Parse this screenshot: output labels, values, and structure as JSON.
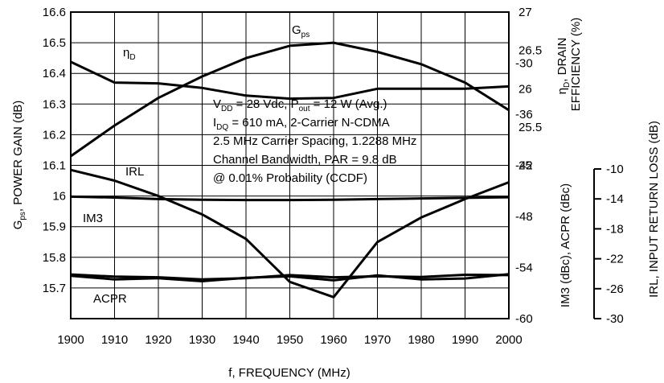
{
  "chart_data": {
    "type": "line",
    "x": [
      1900,
      1910,
      1920,
      1930,
      1940,
      1950,
      1960,
      1970,
      1980,
      1990,
      2000
    ],
    "xlabel": "f, FREQUENCY (MHz)",
    "xlim": [
      1900,
      2000
    ],
    "xticks": [
      "1900",
      "1910",
      "1920",
      "1930",
      "1940",
      "1950",
      "1960",
      "1970",
      "1980",
      "1990",
      "2000"
    ],
    "grid": true,
    "axes": {
      "gps": {
        "side": "left",
        "label_main": "G",
        "label_sub": "ps",
        "label_rest": ", POWER GAIN (dB)",
        "ylim": [
          15.6,
          16.6
        ],
        "ticks": [
          "16.6",
          "16.5",
          "16.4",
          "16.3",
          "16.2",
          "16.1",
          "16",
          "15.9",
          "15.8",
          "15.7"
        ]
      },
      "eff": {
        "side": "right-upper",
        "label_line1_main": "η",
        "label_line1_sub": "D",
        "label_line1_rest": ", DRAIN",
        "label_line2": "EFFICIENCY (%)",
        "ylim": [
          23,
          27
        ],
        "ticks": [
          "27",
          "26.5",
          "26",
          "25.5",
          "25"
        ]
      },
      "imd": {
        "side": "right-lower",
        "label": "IM3 (dBc), ACPR (dBc)",
        "ylim": [
          -60,
          -24
        ],
        "ticks": [
          "-30",
          "-36",
          "-42",
          "-48",
          "-54",
          "-60"
        ]
      },
      "irl": {
        "side": "right-outer",
        "label": "IRL, INPUT RETURN LOSS (dB)",
        "ylim": [
          -30,
          -10
        ],
        "ticks": [
          "-10",
          "-14",
          "-18",
          "-22",
          "-26",
          "-30"
        ]
      }
    },
    "series": [
      {
        "key": "gps",
        "name_main": "G",
        "name_sub": "ps",
        "axis": "gps",
        "values": [
          16.13,
          16.23,
          16.32,
          16.39,
          16.45,
          16.49,
          16.5,
          16.47,
          16.43,
          16.37,
          16.28
        ]
      },
      {
        "key": "eff",
        "name_main": "η",
        "name_sub": "D",
        "axis": "eff",
        "values": [
          26.35,
          26.08,
          26.07,
          26.01,
          25.91,
          25.87,
          25.88,
          26.0,
          26.0,
          26.0,
          26.03
        ]
      },
      {
        "key": "irl",
        "name": "IRL",
        "axis": "gps",
        "values": [
          16.085,
          16.05,
          16.0,
          15.94,
          15.86,
          15.72,
          15.67,
          15.85,
          15.93,
          15.99,
          16.045
        ]
      },
      {
        "key": "im3",
        "name": "IM3",
        "axis": "gps",
        "values": [
          15.998,
          15.995,
          15.99,
          15.988,
          15.987,
          15.987,
          15.988,
          15.99,
          15.992,
          15.994,
          15.996
        ]
      },
      {
        "key": "acpr_a",
        "name": "ACPR",
        "axis": "gps",
        "values": [
          15.744,
          15.737,
          15.735,
          15.728,
          15.732,
          15.742,
          15.735,
          15.738,
          15.736,
          15.743,
          15.742
        ]
      },
      {
        "key": "acpr_b",
        "name": "",
        "axis": "gps",
        "values": [
          15.74,
          15.728,
          15.732,
          15.722,
          15.733,
          15.738,
          15.725,
          15.741,
          15.728,
          15.731,
          15.745
        ]
      }
    ],
    "annotation": {
      "l1a": "V",
      "l1s": "DD",
      "l1b": " = 28 Vdc, P",
      "l1s2": "out",
      "l1c": " = 12 W (Avg.)",
      "l2a": "I",
      "l2s": "DQ",
      "l2b": " = 610 mA, 2-Carrier N-CDMA",
      "l3": "2.5 MHz Carrier Spacing, 1.2288 MHz",
      "l4": "Channel Bandwidth, PAR = 9.8 dB",
      "l5": "@ 0.01% Probability (CCDF)"
    }
  }
}
